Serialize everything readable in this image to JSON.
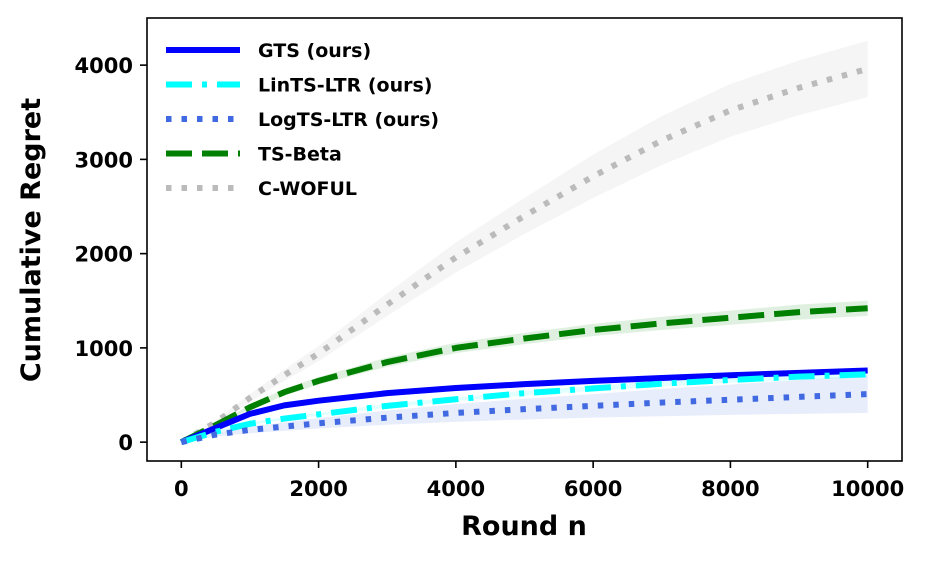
{
  "chart_data": {
    "type": "line",
    "title": "",
    "xlabel": "Round n",
    "ylabel": "Cumulative Regret",
    "xlim": [
      -500,
      10500
    ],
    "ylim": [
      -200,
      4500
    ],
    "xticks": [
      0,
      2000,
      4000,
      6000,
      8000,
      10000
    ],
    "yticks": [
      0,
      1000,
      2000,
      3000,
      4000
    ],
    "legend_position": "top-left",
    "x": [
      0,
      500,
      1000,
      1500,
      2000,
      3000,
      4000,
      5000,
      6000,
      7000,
      8000,
      9000,
      10000
    ],
    "series": [
      {
        "name": "GTS (ours)",
        "color": "#0000ff",
        "dash": "solid",
        "values": [
          0,
          150,
          300,
          390,
          440,
          520,
          575,
          615,
          650,
          680,
          710,
          735,
          760
        ],
        "band": null
      },
      {
        "name": "LinTS-LTR (ours)",
        "color": "#00ffff",
        "dash": "dashdot",
        "values": [
          0,
          110,
          195,
          250,
          295,
          385,
          455,
          520,
          570,
          620,
          660,
          695,
          720
        ],
        "band": {
          "color": "#00ffff",
          "lower": [
            0,
            100,
            180,
            235,
            280,
            365,
            435,
            495,
            545,
            590,
            630,
            660,
            685
          ],
          "upper": [
            0,
            120,
            210,
            265,
            310,
            405,
            475,
            545,
            595,
            650,
            690,
            730,
            755
          ]
        }
      },
      {
        "name": "LogTS-LTR (ours)",
        "color": "#4169e1",
        "dash": "dotted",
        "values": [
          0,
          80,
          130,
          165,
          200,
          260,
          310,
          350,
          385,
          420,
          450,
          480,
          510
        ],
        "band": {
          "color": "#4169e1",
          "lower": [
            0,
            60,
            95,
            120,
            145,
            185,
            215,
            240,
            260,
            275,
            290,
            300,
            310
          ],
          "upper": [
            0,
            100,
            165,
            210,
            255,
            335,
            405,
            460,
            510,
            565,
            610,
            660,
            710
          ]
        }
      },
      {
        "name": "TS-Beta",
        "color": "#008000",
        "dash": "dashed",
        "values": [
          0,
          180,
          370,
          530,
          650,
          850,
          1000,
          1100,
          1190,
          1260,
          1320,
          1380,
          1420
        ],
        "band": {
          "color": "#008000",
          "lower": [
            0,
            170,
            345,
            495,
            610,
            800,
            945,
            1040,
            1125,
            1190,
            1245,
            1300,
            1340
          ],
          "upper": [
            0,
            190,
            395,
            565,
            690,
            900,
            1055,
            1160,
            1255,
            1330,
            1395,
            1460,
            1500
          ]
        }
      },
      {
        "name": "C-WOFUL",
        "color": "#bbbbbb",
        "dash": "dotted",
        "values": [
          0,
          210,
          470,
          710,
          940,
          1460,
          1960,
          2400,
          2820,
          3200,
          3520,
          3760,
          3960
        ],
        "band": {
          "color": "#aaaaaa",
          "lower": [
            0,
            190,
            430,
            650,
            860,
            1340,
            1800,
            2210,
            2590,
            2940,
            3240,
            3470,
            3660
          ],
          "upper": [
            0,
            230,
            510,
            770,
            1020,
            1580,
            2120,
            2590,
            3050,
            3460,
            3800,
            4050,
            4260
          ]
        }
      }
    ]
  }
}
